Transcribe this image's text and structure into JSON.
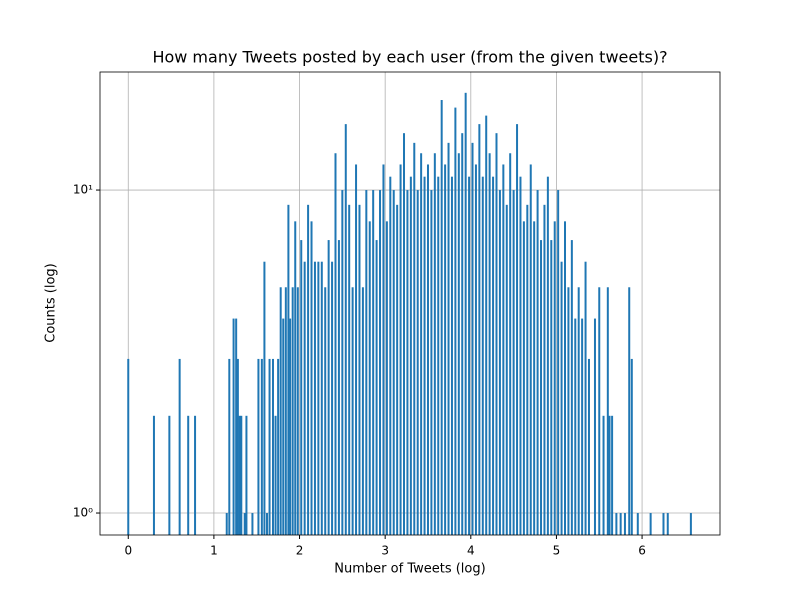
{
  "chart_data": {
    "type": "bar",
    "title": "How many Tweets posted by each user (from the given tweets)?",
    "xlabel": "Number of Tweets (log)",
    "ylabel": "Counts (log)",
    "color": "#1f77b4",
    "grid": true,
    "yscale": "log",
    "xlim": [
      -0.33,
      6.91
    ],
    "ylim": [
      0.855,
      23.2
    ],
    "xticks": [
      0,
      1,
      2,
      3,
      4,
      5,
      6
    ],
    "yticks": [
      {
        "value": 1,
        "label": "10⁰"
      },
      {
        "value": 10,
        "label": "10¹"
      }
    ],
    "x": [
      0,
      0.3,
      0.48,
      0.6,
      0.7,
      0.78,
      1.15,
      1.18,
      1.23,
      1.26,
      1.28,
      1.3,
      1.32,
      1.36,
      1.38,
      1.45,
      1.52,
      1.56,
      1.59,
      1.62,
      1.65,
      1.69,
      1.72,
      1.75,
      1.78,
      1.81,
      1.84,
      1.87,
      1.89,
      1.92,
      1.95,
      1.98,
      2.02,
      2.06,
      2.1,
      2.14,
      2.18,
      2.22,
      2.26,
      2.3,
      2.34,
      2.38,
      2.42,
      2.46,
      2.5,
      2.54,
      2.58,
      2.62,
      2.66,
      2.7,
      2.74,
      2.78,
      2.82,
      2.86,
      2.9,
      2.94,
      2.98,
      3.02,
      3.06,
      3.1,
      3.14,
      3.18,
      3.22,
      3.26,
      3.3,
      3.34,
      3.38,
      3.42,
      3.46,
      3.5,
      3.54,
      3.58,
      3.62,
      3.66,
      3.7,
      3.74,
      3.78,
      3.82,
      3.86,
      3.9,
      3.94,
      3.98,
      4.02,
      4.06,
      4.1,
      4.14,
      4.18,
      4.22,
      4.26,
      4.3,
      4.34,
      4.38,
      4.42,
      4.46,
      4.5,
      4.54,
      4.58,
      4.62,
      4.66,
      4.7,
      4.74,
      4.78,
      4.82,
      4.86,
      4.9,
      4.94,
      4.98,
      5.02,
      5.06,
      5.1,
      5.14,
      5.18,
      5.22,
      5.26,
      5.3,
      5.34,
      5.38,
      5.45,
      5.5,
      5.55,
      5.6,
      5.62,
      5.65,
      5.7,
      5.75,
      5.8,
      5.85,
      5.88,
      5.95,
      6.1,
      6.25,
      6.3,
      6.57
    ],
    "values": [
      3,
      2,
      2,
      3,
      2,
      2,
      1,
      3,
      4,
      4,
      3,
      2,
      2,
      1,
      2,
      1,
      3,
      3,
      6,
      1,
      3,
      3,
      2,
      3,
      5,
      4,
      5,
      9,
      4,
      5,
      8,
      5,
      7,
      6,
      9,
      8,
      6,
      6,
      6,
      5,
      7,
      6,
      13,
      7,
      10,
      16,
      9,
      5,
      12,
      9,
      5,
      10,
      8,
      10,
      7,
      10,
      12,
      8,
      11,
      10,
      9,
      12,
      15,
      10,
      11,
      14,
      10,
      13,
      11,
      12,
      10,
      13,
      11,
      19,
      12,
      14,
      11,
      18,
      13,
      15,
      20,
      11,
      14,
      12,
      16,
      11,
      17,
      13,
      11,
      15,
      10,
      12,
      9,
      13,
      10,
      16,
      11,
      8,
      9,
      12,
      8,
      10,
      7,
      9,
      11,
      7,
      8,
      10,
      6,
      8,
      5,
      7,
      4,
      5,
      4,
      6,
      3,
      4,
      5,
      2,
      5,
      2,
      2,
      1,
      1,
      1,
      5,
      3,
      1,
      1,
      1,
      1,
      1
    ]
  }
}
